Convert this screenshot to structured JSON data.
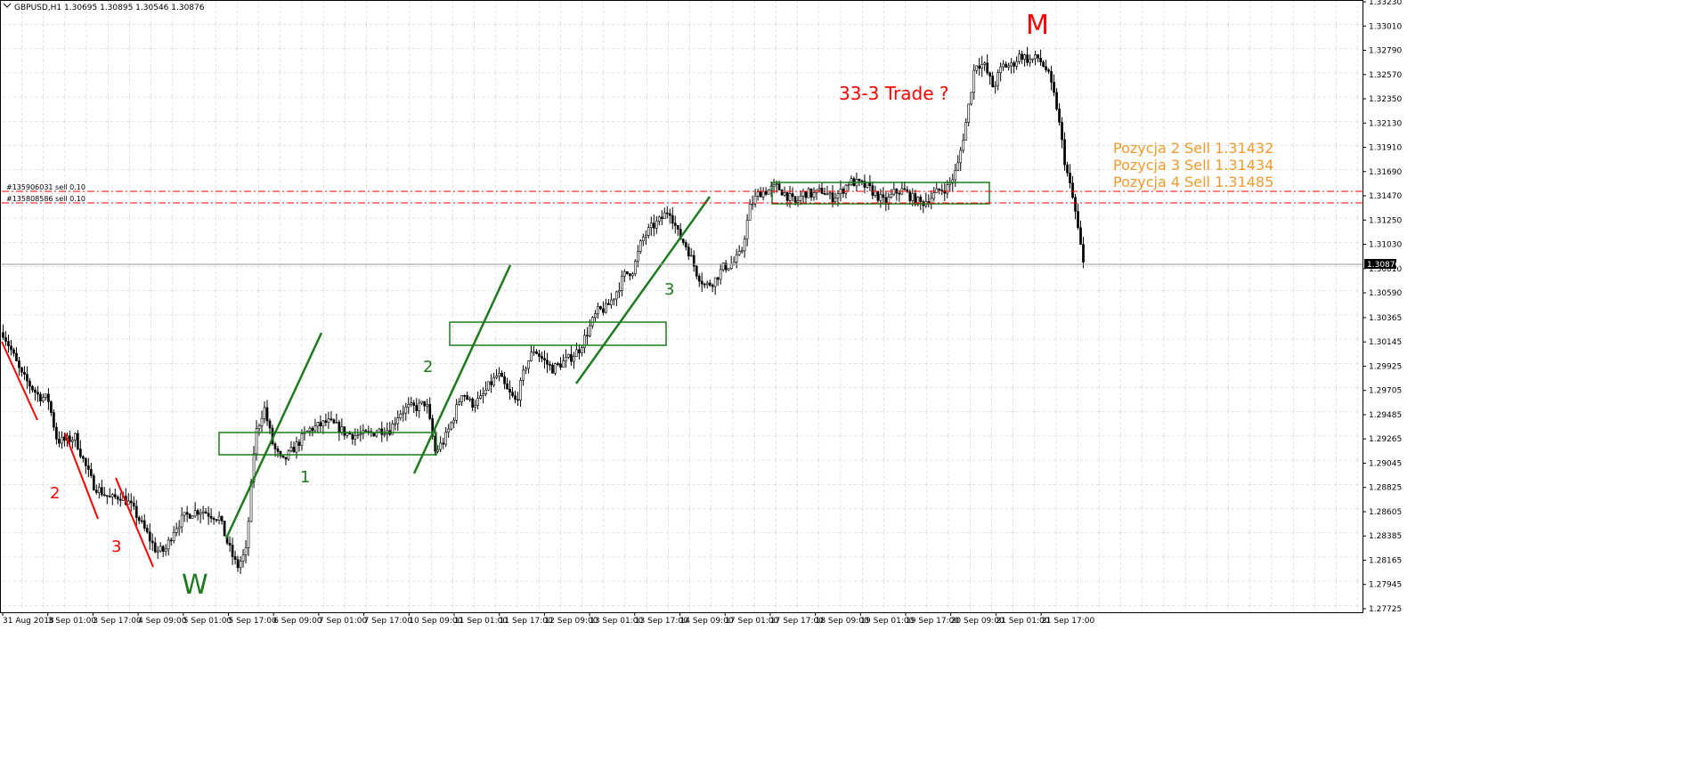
{
  "header": {
    "symbol_info": "GBPUSD,H1  1.30695 1.30895 1.30546 1.30876"
  },
  "chart_data": {
    "type": "candlestick",
    "symbol": "GBPUSD",
    "timeframe": "H1",
    "ohlc_current": {
      "open": 1.30695,
      "high": 1.30895,
      "low": 1.30546,
      "close": 1.30876
    },
    "y_ticks": [
      "1.33230",
      "1.33010",
      "1.32790",
      "1.32570",
      "1.32350",
      "1.32130",
      "1.31910",
      "1.31690",
      "1.31470",
      "1.31250",
      "1.31030",
      "1.30810",
      "1.30590",
      "1.30365",
      "1.30145",
      "1.29925",
      "1.29705",
      "1.29485",
      "1.29265",
      "1.29045",
      "1.28825",
      "1.28605",
      "1.28385",
      "1.28165",
      "1.27945",
      "1.27725"
    ],
    "ylim": [
      1.27725,
      1.3323
    ],
    "x_ticks": [
      "31 Aug 2018",
      "3 Sep 01:00",
      "3 Sep 17:00",
      "4 Sep 09:00",
      "5 Sep 01:00",
      "5 Sep 17:00",
      "6 Sep 09:00",
      "7 Sep 01:00",
      "7 Sep 17:00",
      "10 Sep 09:00",
      "11 Sep 01:00",
      "11 Sep 17:00",
      "12 Sep 09:00",
      "13 Sep 01:00",
      "13 Sep 17:00",
      "14 Sep 09:00",
      "17 Sep 01:00",
      "17 Sep 17:00",
      "18 Sep 09:00",
      "19 Sep 01:00",
      "19 Sep 17:00",
      "20 Sep 09:00",
      "21 Sep 01:00",
      "21 Sep 17:00"
    ],
    "current_price_label": "1.30876",
    "current_price": 1.30876,
    "grid": true,
    "price_path": [
      [
        0,
        1.3023
      ],
      [
        0.5,
        1.3005
      ],
      [
        1,
        1.2985
      ],
      [
        1.5,
        1.2975
      ],
      [
        2,
        1.2965
      ],
      [
        2.5,
        1.2963
      ],
      [
        3,
        1.2925
      ],
      [
        3.5,
        1.2925
      ],
      [
        4,
        1.2928
      ],
      [
        4.5,
        1.2905
      ],
      [
        5,
        1.2885
      ],
      [
        5.5,
        1.2878
      ],
      [
        6,
        1.2872
      ],
      [
        6.5,
        1.2875
      ],
      [
        7,
        1.2868
      ],
      [
        7.5,
        1.2855
      ],
      [
        8,
        1.284
      ],
      [
        8.5,
        1.2825
      ],
      [
        9,
        1.2825
      ],
      [
        9.5,
        1.2845
      ],
      [
        10,
        1.2855
      ],
      [
        10.5,
        1.286
      ],
      [
        11,
        1.2862
      ],
      [
        11.5,
        1.2858
      ],
      [
        12,
        1.2855
      ],
      [
        12.5,
        1.283
      ],
      [
        13,
        1.281
      ],
      [
        13.5,
        1.2825
      ],
      [
        14,
        1.293
      ],
      [
        14.5,
        1.2955
      ],
      [
        15,
        1.292
      ],
      [
        15.5,
        1.2905
      ],
      [
        16,
        1.2915
      ],
      [
        16.5,
        1.2925
      ],
      [
        17,
        1.2935
      ],
      [
        17.5,
        1.2938
      ],
      [
        18,
        1.2942
      ],
      [
        18.5,
        1.2938
      ],
      [
        19,
        1.2932
      ],
      [
        19.5,
        1.293
      ],
      [
        20,
        1.293
      ],
      [
        20.5,
        1.2932
      ],
      [
        21,
        1.2935
      ],
      [
        21.5,
        1.2935
      ],
      [
        22,
        1.295
      ],
      [
        22.5,
        1.2955
      ],
      [
        23,
        1.2955
      ],
      [
        23.5,
        1.296
      ],
      [
        24,
        1.2915
      ],
      [
        24.5,
        1.2925
      ],
      [
        25,
        1.2945
      ],
      [
        25.5,
        1.297
      ],
      [
        26,
        1.2958
      ],
      [
        26.5,
        1.2962
      ],
      [
        27,
        1.2975
      ],
      [
        27.5,
        1.2985
      ],
      [
        28,
        1.297
      ],
      [
        28.5,
        1.296
      ],
      [
        29,
        1.2992
      ],
      [
        29.5,
        1.3008
      ],
      [
        30,
        1.2998
      ],
      [
        30.5,
        1.299
      ],
      [
        31,
        1.2995
      ],
      [
        31.5,
        1.3
      ],
      [
        32,
        1.3008
      ],
      [
        32.5,
        1.3025
      ],
      [
        33,
        1.3042
      ],
      [
        33.5,
        1.3045
      ],
      [
        34,
        1.3058
      ],
      [
        34.5,
        1.3075
      ],
      [
        35,
        1.308
      ],
      [
        35.5,
        1.3108
      ],
      [
        36,
        1.3118
      ],
      [
        36.5,
        1.3125
      ],
      [
        37,
        1.3135
      ],
      [
        37.5,
        1.3112
      ],
      [
        38,
        1.31
      ],
      [
        38.5,
        1.3078
      ],
      [
        39,
        1.3065
      ],
      [
        39.5,
        1.307
      ],
      [
        40,
        1.3082
      ],
      [
        40.5,
        1.3085
      ],
      [
        41,
        1.3095
      ],
      [
        41.5,
        1.3138
      ],
      [
        42,
        1.315
      ],
      [
        42.5,
        1.3152
      ],
      [
        43,
        1.3155
      ],
      [
        43.5,
        1.3148
      ],
      [
        44,
        1.314
      ],
      [
        44.5,
        1.315
      ],
      [
        45,
        1.3148
      ],
      [
        45.5,
        1.3152
      ],
      [
        46,
        1.3145
      ],
      [
        46.5,
        1.315
      ],
      [
        47,
        1.316
      ],
      [
        47.5,
        1.3158
      ],
      [
        48,
        1.3155
      ],
      [
        48.5,
        1.3148
      ],
      [
        49,
        1.314
      ],
      [
        49.5,
        1.315
      ],
      [
        50,
        1.3152
      ],
      [
        50.5,
        1.3145
      ],
      [
        51,
        1.314
      ],
      [
        51.5,
        1.3145
      ],
      [
        52,
        1.3152
      ],
      [
        52.5,
        1.3155
      ],
      [
        53,
        1.3172
      ],
      [
        53.5,
        1.3215
      ],
      [
        54,
        1.3268
      ],
      [
        54.5,
        1.3265
      ],
      [
        55,
        1.3245
      ],
      [
        55.5,
        1.3265
      ],
      [
        56,
        1.3265
      ],
      [
        56.5,
        1.3275
      ],
      [
        57,
        1.327
      ],
      [
        57.5,
        1.3272
      ],
      [
        58,
        1.326
      ],
      [
        58.5,
        1.323
      ],
      [
        59,
        1.3175
      ],
      [
        59.5,
        1.3138
      ],
      [
        60,
        1.3085
      ]
    ],
    "price_path_x_unit": "fraction of visible period from 31 Aug 2018 (0) to 21 Sep close (60)"
  },
  "order_lines": [
    {
      "label": "#135906031 sell 0.10",
      "price": 1.31526
    },
    {
      "label": "#135808586 sell 0.10",
      "price": 1.31432
    }
  ],
  "annotations": {
    "m_label": "M",
    "w_label": "W",
    "trade_title": "33-3 Trade ?",
    "red_2": "2",
    "red_3": "3",
    "green_1": "1",
    "green_2": "2",
    "green_3": "3",
    "positions": [
      "Pozycja 2 Sell 1.31432",
      "Pozycja 3 Sell 1.31434",
      "Pozycja 4 Sell 1.31485"
    ]
  },
  "colors": {
    "bull_fill": "#ffffff",
    "bear_fill": "#000000",
    "grid": "#c0c0c0",
    "red_annotation": "#ff0000",
    "green_annotation": "#1e7a1e",
    "orange_text": "#f29a2e",
    "order_line": "#ff0000"
  }
}
